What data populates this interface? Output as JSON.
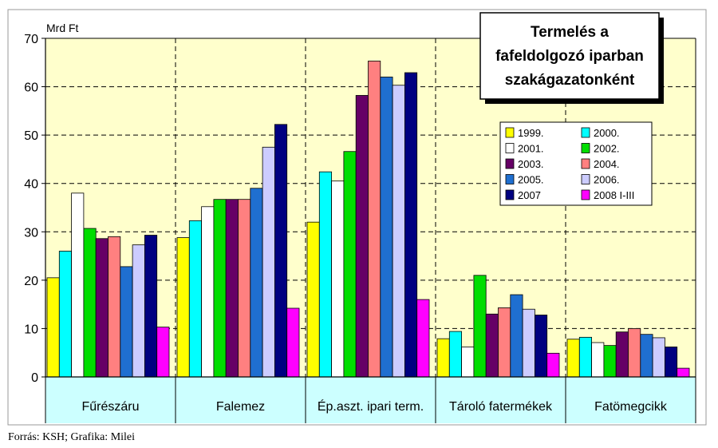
{
  "chart_data": {
    "type": "bar",
    "title": "Termelés a fafeldolgozó iparban szakágazatonként",
    "title_lines": [
      "Termelés a",
      "fafeldolgozó iparban",
      "szakágazatonként"
    ],
    "ylabel": "Mrd Ft",
    "xlabel": "",
    "ylim": [
      0,
      70
    ],
    "yticks": [
      0,
      10,
      20,
      30,
      40,
      50,
      60,
      70
    ],
    "grid": true,
    "legend_position": "right",
    "categories": [
      "Fűrészáru",
      "Falemez",
      "Ép.aszt. ipari term.",
      "Tároló fatermékek",
      "Fatömegcikk"
    ],
    "series": [
      {
        "name": "1999.",
        "color": "#ffff00",
        "values": [
          20.5,
          28.8,
          32.0,
          7.9,
          7.8
        ]
      },
      {
        "name": "2000.",
        "color": "#00ffff",
        "values": [
          26.0,
          32.3,
          42.4,
          9.4,
          8.2
        ]
      },
      {
        "name": "2001.",
        "color": "#ffffff",
        "values": [
          38.0,
          35.2,
          40.5,
          6.2,
          7.1
        ]
      },
      {
        "name": "2002.",
        "color": "#00dd00",
        "values": [
          30.7,
          36.7,
          46.6,
          21.0,
          6.5
        ]
      },
      {
        "name": "2003.",
        "color": "#660066",
        "values": [
          28.6,
          36.7,
          58.2,
          13.0,
          9.3
        ]
      },
      {
        "name": "2004.",
        "color": "#ff8080",
        "values": [
          29.0,
          36.7,
          65.3,
          14.3,
          10.0
        ]
      },
      {
        "name": "2005.",
        "color": "#1f6fd0",
        "values": [
          22.8,
          39.0,
          62.0,
          17.0,
          8.8
        ]
      },
      {
        "name": "2006.",
        "color": "#ccccff",
        "values": [
          27.3,
          47.5,
          60.3,
          14.0,
          8.1
        ]
      },
      {
        "name": "2007",
        "color": "#000080",
        "values": [
          29.3,
          52.2,
          62.9,
          12.8,
          6.2
        ]
      },
      {
        "name": "2008 I-III",
        "color": "#ff00ff",
        "values": [
          10.3,
          14.2,
          16.0,
          4.9,
          1.8
        ]
      }
    ],
    "colors": {
      "plot_background": "#ffffcc",
      "category_band": "#ccffff",
      "outer_background": "#ffffff"
    }
  },
  "source": "Forrás: KSH; Grafika: Milei"
}
